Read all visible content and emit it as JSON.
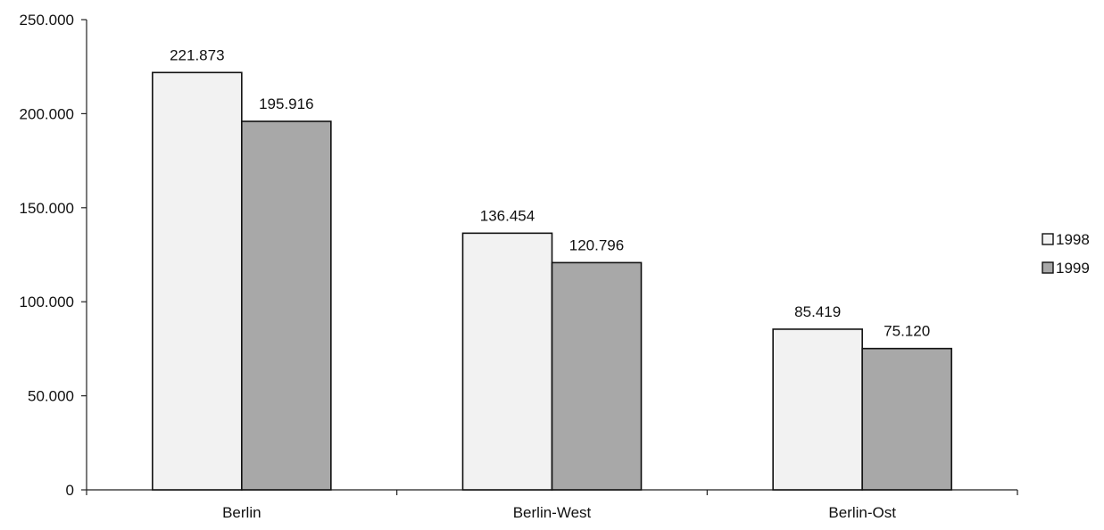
{
  "chart_data": {
    "type": "bar",
    "title": "",
    "xlabel": "",
    "ylabel": "",
    "categories": [
      "Berlin",
      "Berlin-West",
      "Berlin-Ost"
    ],
    "series": [
      {
        "name": "1998",
        "values": [
          221873,
          136454,
          85419
        ],
        "labels": [
          "221.873",
          "136.454",
          "85.419"
        ],
        "color": "#f2f2f2"
      },
      {
        "name": "1999",
        "values": [
          195916,
          120796,
          75120
        ],
        "labels": [
          "195.916",
          "120.796",
          "75.120"
        ],
        "color": "#a8a8a8"
      }
    ],
    "ylim": [
      0,
      250000
    ],
    "yticks": [
      0,
      50000,
      100000,
      150000,
      200000,
      250000
    ],
    "ytick_labels": [
      "0",
      "50.000",
      "100.000",
      "150.000",
      "200.000",
      "250.000"
    ],
    "grid": false,
    "legend_position": "right"
  }
}
